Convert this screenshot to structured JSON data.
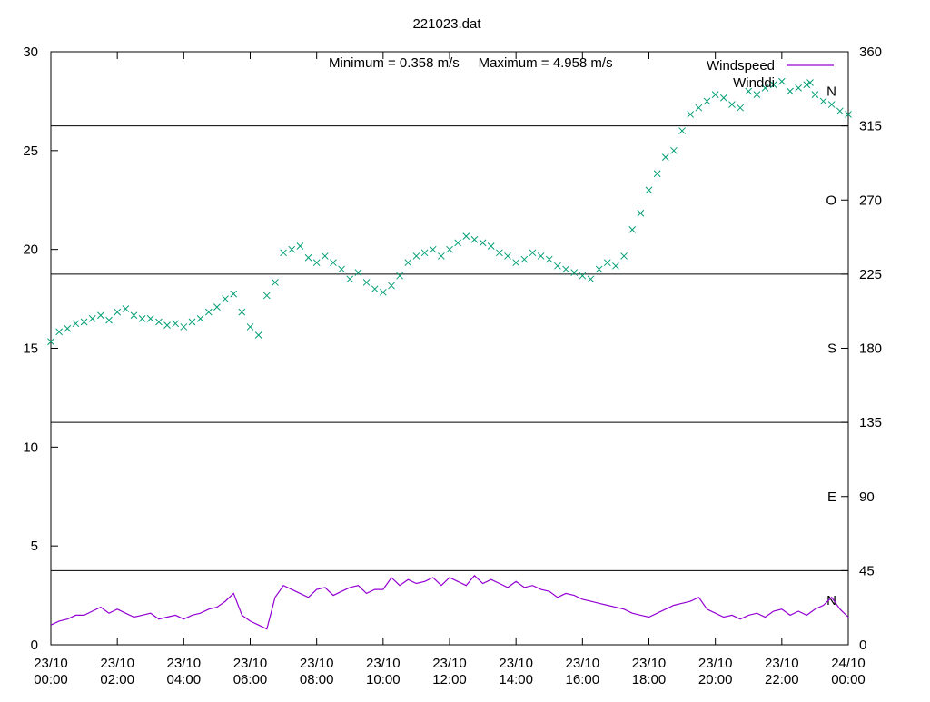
{
  "chart_data": {
    "type": "line",
    "title": "221023.dat",
    "annotation": "Minimum = 0.358 m/s     Maximum = 4.958 m/s",
    "legend_position": "top-right",
    "grid": false,
    "x_ticks": [
      {
        "line1": "23/10",
        "line2": "00:00",
        "hour": 0
      },
      {
        "line1": "23/10",
        "line2": "02:00",
        "hour": 2
      },
      {
        "line1": "23/10",
        "line2": "04:00",
        "hour": 4
      },
      {
        "line1": "23/10",
        "line2": "06:00",
        "hour": 6
      },
      {
        "line1": "23/10",
        "line2": "08:00",
        "hour": 8
      },
      {
        "line1": "23/10",
        "line2": "10:00",
        "hour": 10
      },
      {
        "line1": "23/10",
        "line2": "12:00",
        "hour": 12
      },
      {
        "line1": "23/10",
        "line2": "14:00",
        "hour": 14
      },
      {
        "line1": "23/10",
        "line2": "16:00",
        "hour": 16
      },
      {
        "line1": "23/10",
        "line2": "18:00",
        "hour": 18
      },
      {
        "line1": "23/10",
        "line2": "20:00",
        "hour": 20
      },
      {
        "line1": "23/10",
        "line2": "22:00",
        "hour": 22
      },
      {
        "line1": "24/10",
        "line2": "00:00",
        "hour": 24
      }
    ],
    "x_range_hours": [
      0,
      24
    ],
    "y_left": {
      "range": [
        0,
        30
      ],
      "ticks": [
        0,
        5,
        10,
        15,
        20,
        25,
        30
      ]
    },
    "y_right": {
      "range": [
        0,
        360
      ],
      "ticks": [
        0,
        45,
        90,
        135,
        180,
        225,
        270,
        315,
        360
      ]
    },
    "compass_labels": [
      {
        "label": "N",
        "deg": 27
      },
      {
        "label": "E",
        "deg": 90
      },
      {
        "label": "S",
        "deg": 180
      },
      {
        "label": "O",
        "deg": 270
      },
      {
        "label": "N",
        "deg": 336
      }
    ],
    "reference_lines_deg": [
      45,
      135,
      225,
      315
    ],
    "series": [
      {
        "name": "Windspeed",
        "axis": "left",
        "color": "#9400d3",
        "style": "line",
        "x_hours": [
          0,
          0.25,
          0.5,
          0.75,
          1,
          1.25,
          1.5,
          1.75,
          2,
          2.25,
          2.5,
          2.75,
          3,
          3.25,
          3.5,
          3.75,
          4,
          4.25,
          4.5,
          4.75,
          5,
          5.25,
          5.5,
          5.75,
          6,
          6.25,
          6.5,
          6.75,
          7,
          7.25,
          7.5,
          7.75,
          8,
          8.25,
          8.5,
          8.75,
          9,
          9.25,
          9.5,
          9.75,
          10,
          10.25,
          10.5,
          10.75,
          11,
          11.25,
          11.5,
          11.75,
          12,
          12.25,
          12.5,
          12.75,
          13,
          13.25,
          13.5,
          13.75,
          14,
          14.25,
          14.5,
          14.75,
          15,
          15.25,
          15.5,
          15.75,
          16,
          16.25,
          16.5,
          16.75,
          17,
          17.25,
          17.5,
          17.75,
          18,
          18.25,
          18.5,
          18.75,
          19,
          19.25,
          19.5,
          19.75,
          20,
          20.25,
          20.5,
          20.75,
          21,
          21.25,
          21.5,
          21.75,
          22,
          22.25,
          22.5,
          22.75,
          23,
          23.25,
          23.5,
          23.75,
          24
        ],
        "values": [
          1.0,
          1.2,
          1.3,
          1.5,
          1.5,
          1.7,
          1.9,
          1.6,
          1.8,
          1.6,
          1.4,
          1.5,
          1.6,
          1.3,
          1.4,
          1.5,
          1.3,
          1.5,
          1.6,
          1.8,
          1.9,
          2.2,
          2.6,
          1.5,
          1.2,
          1.0,
          0.8,
          2.4,
          3.0,
          2.8,
          2.6,
          2.4,
          2.8,
          2.9,
          2.5,
          2.7,
          2.9,
          3.0,
          2.6,
          2.8,
          2.8,
          3.4,
          3.0,
          3.3,
          3.1,
          3.2,
          3.4,
          3.0,
          3.4,
          3.2,
          3.0,
          3.5,
          3.1,
          3.3,
          3.1,
          2.9,
          3.2,
          2.9,
          3.0,
          2.8,
          2.7,
          2.4,
          2.6,
          2.5,
          2.3,
          2.2,
          2.1,
          2.0,
          1.9,
          1.8,
          1.6,
          1.5,
          1.4,
          1.6,
          1.8,
          2.0,
          2.1,
          2.2,
          2.4,
          1.8,
          1.6,
          1.4,
          1.5,
          1.3,
          1.5,
          1.6,
          1.4,
          1.7,
          1.8,
          1.5,
          1.7,
          1.5,
          1.8,
          2.0,
          2.4,
          1.8,
          1.4
        ]
      },
      {
        "name": "Winddi",
        "axis": "right",
        "color": "#009e73",
        "style": "points",
        "x_hours": [
          0,
          0.25,
          0.5,
          0.75,
          1,
          1.25,
          1.5,
          1.75,
          2,
          2.25,
          2.5,
          2.75,
          3,
          3.25,
          3.5,
          3.75,
          4,
          4.25,
          4.5,
          4.75,
          5,
          5.25,
          5.5,
          5.75,
          6,
          6.25,
          6.5,
          6.75,
          7,
          7.25,
          7.5,
          7.75,
          8,
          8.25,
          8.5,
          8.75,
          9,
          9.25,
          9.5,
          9.75,
          10,
          10.25,
          10.5,
          10.75,
          11,
          11.25,
          11.5,
          11.75,
          12,
          12.25,
          12.5,
          12.75,
          13,
          13.25,
          13.5,
          13.75,
          14,
          14.25,
          14.5,
          14.75,
          15,
          15.25,
          15.5,
          15.75,
          16,
          16.25,
          16.5,
          16.75,
          17,
          17.25,
          17.5,
          17.75,
          18,
          18.25,
          18.5,
          18.75,
          19,
          19.25,
          19.5,
          19.75,
          20,
          20.25,
          20.5,
          20.75,
          21,
          21.25,
          21.5,
          21.75,
          22,
          22.25,
          22.5,
          22.75,
          23,
          23.25,
          23.5,
          23.75,
          24
        ],
        "values": [
          184,
          190,
          192,
          195,
          196,
          198,
          200,
          197,
          202,
          204,
          200,
          198,
          198,
          196,
          194,
          195,
          193,
          196,
          198,
          202,
          205,
          210,
          213,
          202,
          193,
          188,
          212,
          220,
          238,
          240,
          242,
          235,
          232,
          236,
          232,
          228,
          222,
          226,
          220,
          216,
          214,
          218,
          224,
          232,
          236,
          238,
          240,
          236,
          240,
          244,
          248,
          246,
          244,
          242,
          238,
          236,
          232,
          234,
          238,
          236,
          234,
          230,
          228,
          226,
          224,
          222,
          228,
          232,
          230,
          236,
          252,
          262,
          276,
          286,
          296,
          300,
          312,
          322,
          326,
          330,
          334,
          332,
          328,
          326,
          336,
          334,
          338,
          340,
          342,
          336,
          338,
          340,
          334,
          330,
          328,
          324,
          322
        ]
      }
    ]
  }
}
